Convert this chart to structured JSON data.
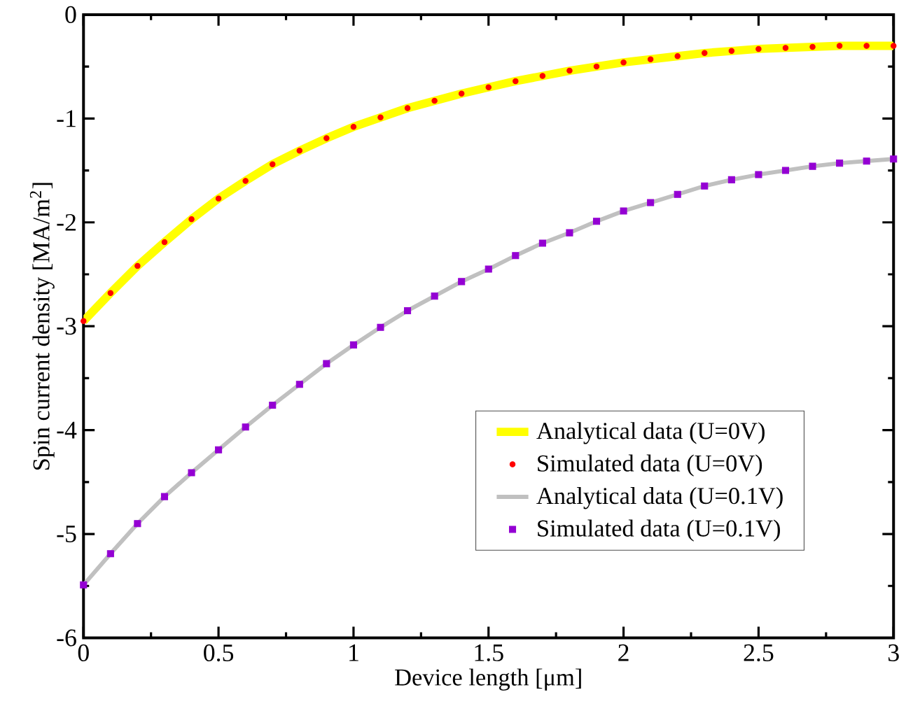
{
  "chart_data": {
    "type": "line",
    "xlabel": "Device length [μm]",
    "ylabel": "Spin current density [MA/m$^{2}$]",
    "x": [
      0,
      0.1,
      0.2,
      0.3,
      0.4,
      0.5,
      0.6,
      0.7,
      0.8,
      0.9,
      1.0,
      1.1,
      1.2,
      1.3,
      1.4,
      1.5,
      1.6,
      1.7,
      1.8,
      1.9,
      2.0,
      2.1,
      2.2,
      2.3,
      2.4,
      2.5,
      2.6,
      2.7,
      2.8,
      2.9,
      3.0
    ],
    "series": [
      {
        "name": "Analytical data (U=0V)",
        "marker": "none",
        "color": "#ffff00",
        "values": [
          -2.95,
          -2.68,
          -2.42,
          -2.19,
          -1.97,
          -1.77,
          -1.6,
          -1.44,
          -1.31,
          -1.19,
          -1.08,
          -0.99,
          -0.9,
          -0.83,
          -0.76,
          -0.7,
          -0.64,
          -0.59,
          -0.54,
          -0.5,
          -0.46,
          -0.43,
          -0.4,
          -0.37,
          -0.35,
          -0.33,
          -0.32,
          -0.31,
          -0.3,
          -0.3,
          -0.3
        ]
      },
      {
        "name": "Simulated data (U=0V)",
        "type": "scatter",
        "marker": "circle",
        "color": "#ff0000",
        "values": [
          -2.95,
          -2.68,
          -2.42,
          -2.19,
          -1.97,
          -1.77,
          -1.6,
          -1.44,
          -1.31,
          -1.19,
          -1.08,
          -0.99,
          -0.9,
          -0.83,
          -0.76,
          -0.7,
          -0.64,
          -0.59,
          -0.54,
          -0.5,
          -0.46,
          -0.43,
          -0.4,
          -0.37,
          -0.35,
          -0.33,
          -0.32,
          -0.31,
          -0.3,
          -0.3,
          -0.3
        ]
      },
      {
        "name": "Analytical data (U=0.1V)",
        "marker": "none",
        "color": "#c0c0c0",
        "values": [
          -5.49,
          -5.19,
          -4.9,
          -4.64,
          -4.41,
          -4.19,
          -3.97,
          -3.76,
          -3.56,
          -3.36,
          -3.18,
          -3.01,
          -2.85,
          -2.71,
          -2.57,
          -2.45,
          -2.32,
          -2.2,
          -2.1,
          -1.99,
          -1.89,
          -1.81,
          -1.73,
          -1.65,
          -1.59,
          -1.54,
          -1.5,
          -1.46,
          -1.43,
          -1.41,
          -1.39
        ]
      },
      {
        "name": "Simulated data (U=0.1V)",
        "type": "scatter",
        "marker": "square",
        "color": "#9400d3",
        "values": [
          -5.49,
          -5.19,
          -4.9,
          -4.64,
          -4.41,
          -4.19,
          -3.97,
          -3.76,
          -3.56,
          -3.36,
          -3.18,
          -3.01,
          -2.85,
          -2.71,
          -2.57,
          -2.45,
          -2.32,
          -2.2,
          -2.1,
          -1.99,
          -1.89,
          -1.81,
          -1.73,
          -1.65,
          -1.59,
          -1.54,
          -1.5,
          -1.46,
          -1.43,
          -1.41,
          -1.39
        ]
      }
    ],
    "xlim": [
      0,
      3
    ],
    "ylim": [
      -6,
      0
    ],
    "xticks": [
      0,
      0.5,
      1,
      1.5,
      2,
      2.5,
      3
    ],
    "yticks": [
      -6,
      -5,
      -4,
      -3,
      -2,
      -1,
      0
    ],
    "grid": false,
    "legend": "right"
  }
}
